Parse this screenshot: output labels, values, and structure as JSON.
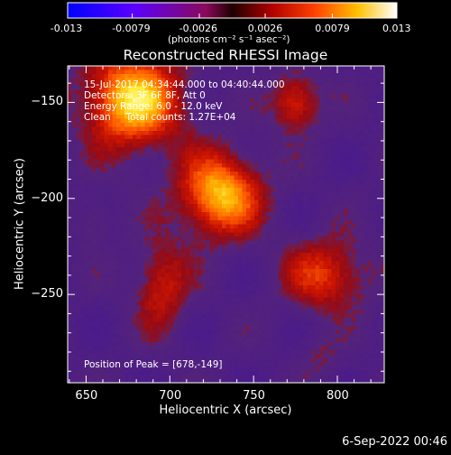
{
  "footer_date": "6-Sep-2022 00:46",
  "colorbar": {
    "tick_labels": [
      "-0.013",
      "-0.0079",
      "-0.0026",
      "0.0026",
      "0.0079",
      "0.013"
    ],
    "unit_label": "(photons cm⁻² s⁻¹ asec⁻²)",
    "range": [
      -0.013,
      0.013
    ],
    "colors": {
      "negative": [
        "#0000ff",
        "#4b00ff",
        "#8a00ff",
        "#8a1a7a",
        "#6a2a2a"
      ],
      "positive": [
        "#7a0000",
        "#c80000",
        "#ff5a00",
        "#ffb000",
        "#ffff60",
        "#ffffff"
      ]
    }
  },
  "chart_data": {
    "type": "heatmap",
    "title": "Reconstructed RHESSI Image",
    "xlabel": "Heliocentric X (arcsec)",
    "ylabel": "Heliocentric Y (arcsec)",
    "xlim": [
      639,
      828
    ],
    "ylim": [
      -296,
      -131
    ],
    "x_ticks": [
      650,
      700,
      750,
      800
    ],
    "y_ticks": [
      -150,
      -200,
      -250
    ],
    "annotations": {
      "time_range": "15-Jul-2017 04:34:44.000 to 04:40:44.000",
      "detectors": "Detectors: 3F 6F 8F, Att 0",
      "energy_range": "Energy Range: 6.0 - 12.0 keV",
      "method": "Clean     Total counts: 1.27E+04",
      "peak": "Position of Peak = [678,-149]"
    },
    "sources": [
      {
        "x": 678,
        "y": -149,
        "sx": 20,
        "sy": 17,
        "amplitude": 0.013
      },
      {
        "x": 730,
        "y": -198,
        "sx": 17,
        "sy": 15,
        "amplitude": 0.012
      },
      {
        "x": 775,
        "y": -150,
        "sx": 10,
        "sy": 10,
        "amplitude": 0.0075
      },
      {
        "x": 793,
        "y": -240,
        "sx": 17,
        "sy": 13,
        "amplitude": 0.0072
      },
      {
        "x": 695,
        "y": -245,
        "sx": 11,
        "sy": 16,
        "amplitude": 0.0062
      },
      {
        "x": 655,
        "y": -212,
        "sx": 7,
        "sy": 8,
        "amplitude": 0.003
      },
      {
        "x": 790,
        "y": -283,
        "sx": 8,
        "sy": 7,
        "amplitude": 0.0025
      }
    ]
  }
}
